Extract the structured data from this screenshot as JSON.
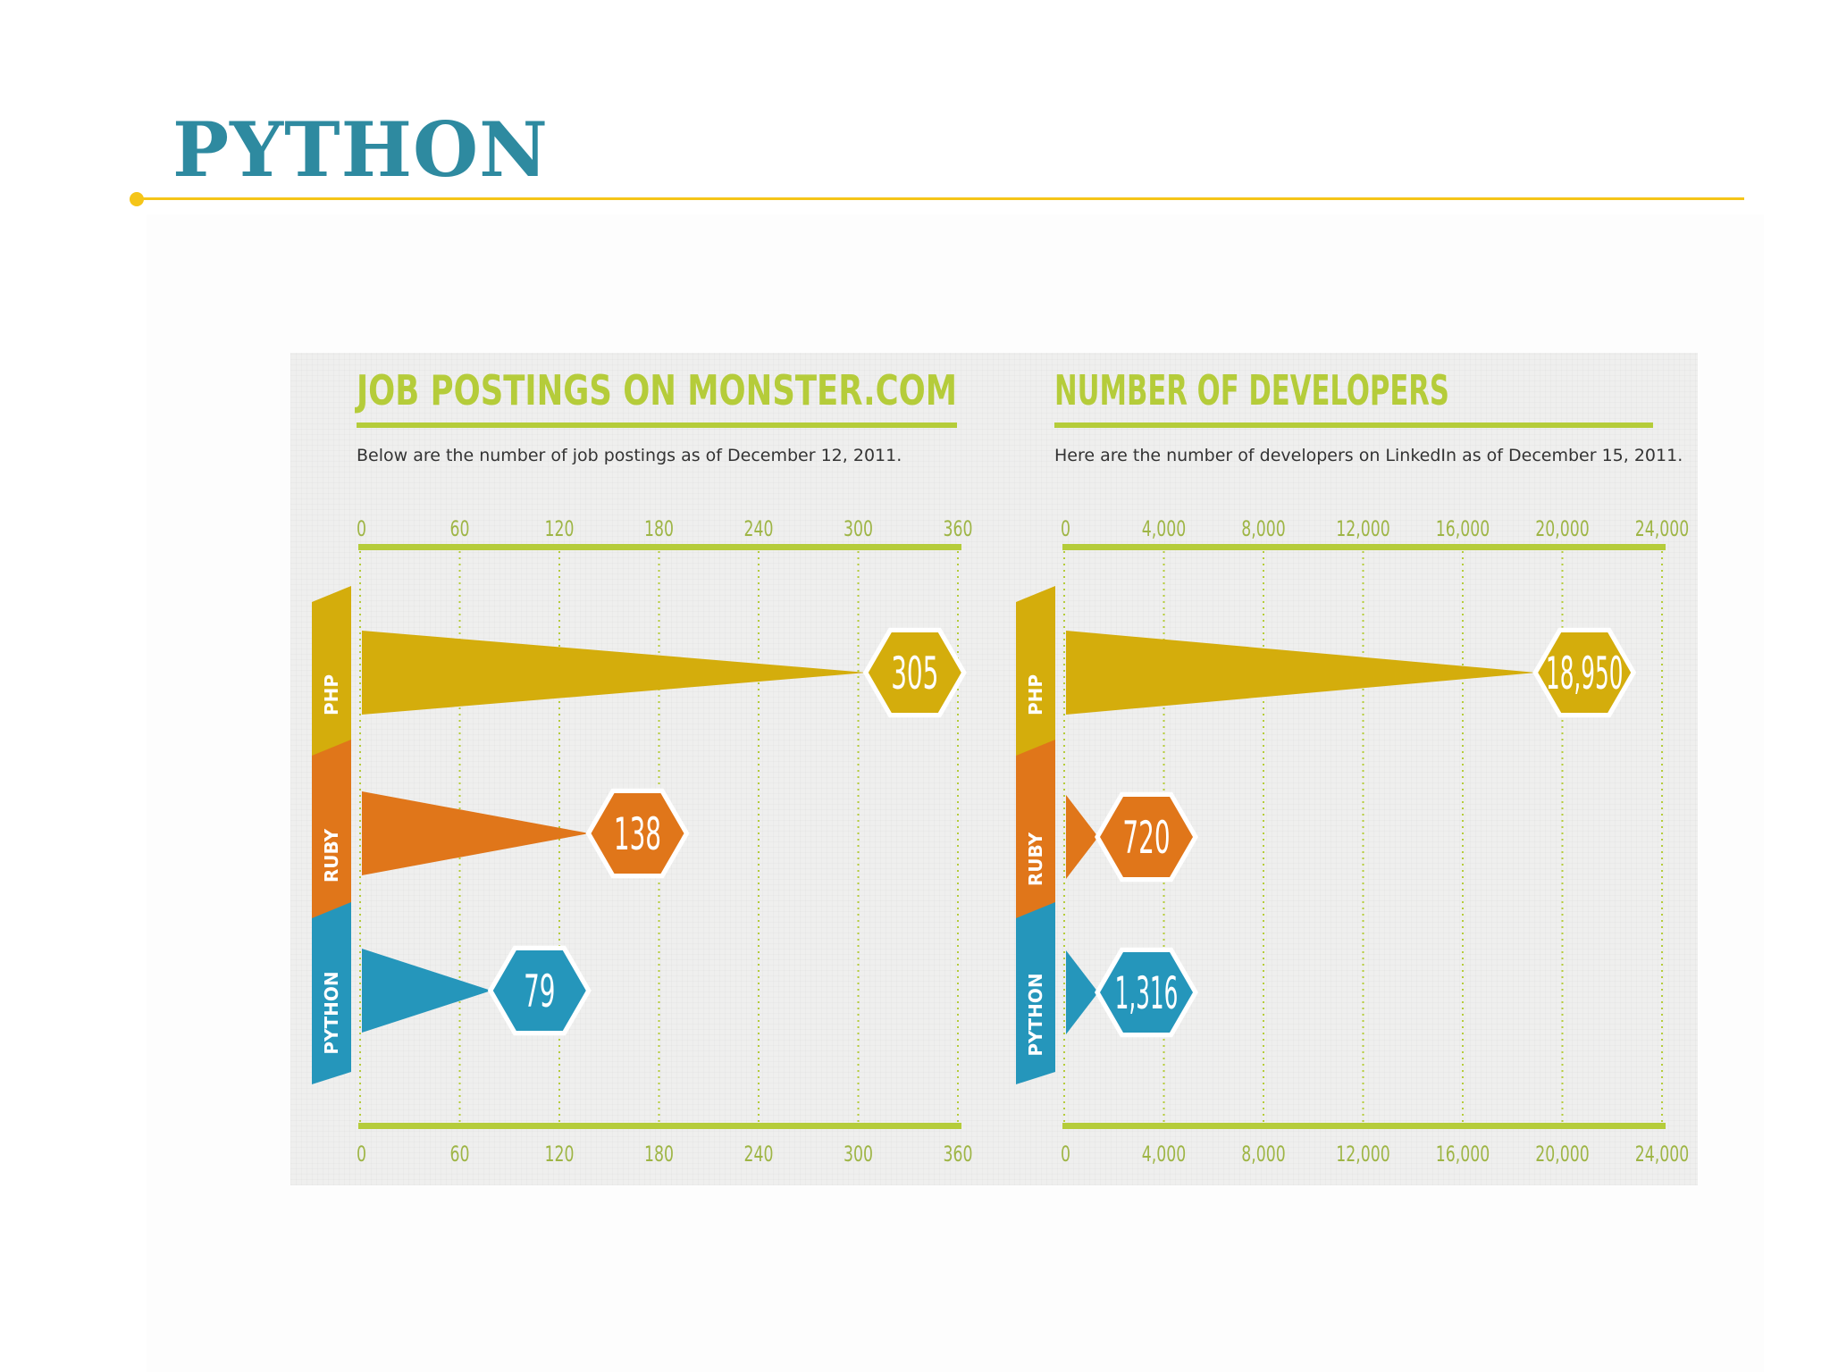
{
  "slide": {
    "title": "PYTHON",
    "colors": {
      "title": "#2e8aa0",
      "rule": "#f5c518"
    }
  },
  "chart_data": [
    {
      "type": "bar",
      "title": "JOB POSTINGS ON MONSTER.COM",
      "subtitle": "Below are the number of job postings as of December 12, 2011.",
      "categories": [
        "PHP",
        "RUBY",
        "PYTHON"
      ],
      "values": [
        305,
        138,
        79
      ],
      "value_labels": [
        "305",
        "138",
        "79"
      ],
      "xlim": [
        0,
        360
      ],
      "ticks": [
        "0",
        "60",
        "120",
        "180",
        "240",
        "300",
        "360"
      ],
      "grid": true
    },
    {
      "type": "bar",
      "title": "NUMBER OF DEVELOPERS",
      "subtitle": "Here are the number of developers on LinkedIn as of December 15, 2011.",
      "categories": [
        "PHP",
        "RUBY",
        "PYTHON"
      ],
      "values": [
        18950,
        720,
        1316
      ],
      "value_labels": [
        "18,950",
        "720",
        "1,316"
      ],
      "xlim": [
        0,
        24000
      ],
      "ticks": [
        "0",
        "4,000",
        "8,000",
        "12,000",
        "16,000",
        "20,000",
        "24,000"
      ],
      "grid": true
    }
  ],
  "colors": {
    "accent": "#b5cc3a",
    "php": "#d4ad0c",
    "ruby": "#e0761a",
    "python": "#2596bb",
    "tick": "#9eb545"
  }
}
